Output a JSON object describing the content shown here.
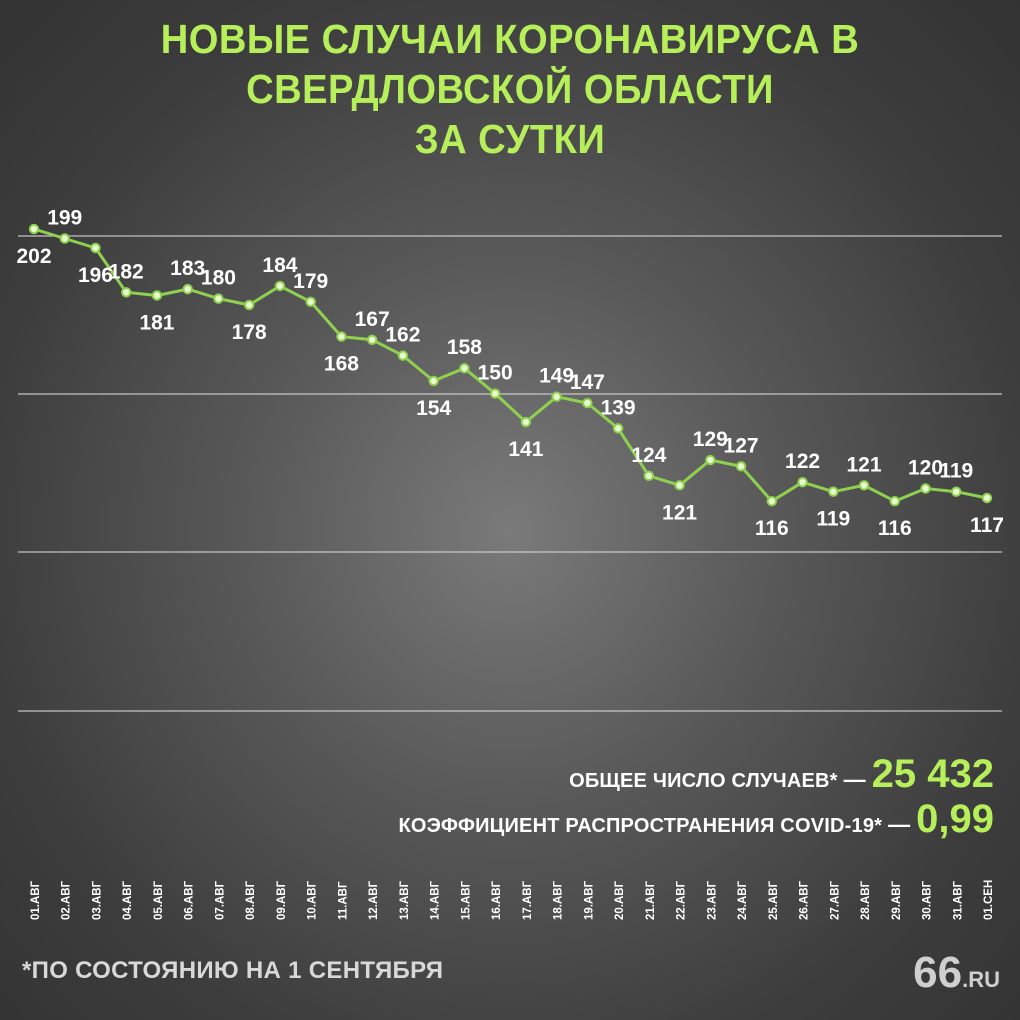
{
  "title": {
    "line1": "НОВЫЕ СЛУЧАИ КОРОНАВИРУСА В СВЕРДЛОВСКОЙ ОБЛАСТИ",
    "line2": "ЗА СУТКИ"
  },
  "stats": {
    "total_label": "ОБЩЕЕ ЧИСЛО СЛУЧАЕВ*",
    "total_value": "25 432",
    "r_label": "КОЭФФИЦИЕНТ РАСПРОСТРАНЕНИЯ COVID-19*",
    "r_value": "0,99",
    "dash": "—"
  },
  "footnote": "*ПО СОСТОЯНИЮ НА 1 СЕНТЯБРЯ",
  "logo": {
    "number": "66",
    "domain": ".RU"
  },
  "colors": {
    "accent": "#b6ef5a",
    "line": "#8fd14f",
    "grid": "#d9d9d9"
  },
  "chart_data": {
    "type": "line",
    "title": "НОВЫЕ СЛУЧАИ КОРОНАВИРУСА В СВЕРДЛОВСКОЙ ОБЛАСТИ ЗА СУТКИ",
    "categories": [
      "01.АВГ",
      "02.АВГ",
      "03.АВГ",
      "04.АВГ",
      "05.АВГ",
      "06.АВГ",
      "07.АВГ",
      "08.АВГ",
      "09.АВГ",
      "10.АВГ",
      "11.АВГ",
      "12.АВГ",
      "13.АВГ",
      "14.АВГ",
      "15.АВГ",
      "16.АВГ",
      "17.АВГ",
      "18.АВГ",
      "19.АВГ",
      "20.АВГ",
      "21.АВГ",
      "22.АВГ",
      "23.АВГ",
      "24.АВГ",
      "25.АВГ",
      "26.АВГ",
      "27.АВГ",
      "28.АВГ",
      "29.АВГ",
      "30.АВГ",
      "31.АВГ",
      "01.СЕН"
    ],
    "values": [
      202,
      199,
      196,
      182,
      181,
      183,
      180,
      178,
      184,
      179,
      168,
      167,
      162,
      154,
      158,
      150,
      141,
      149,
      147,
      139,
      124,
      121,
      129,
      127,
      116,
      122,
      119,
      121,
      116,
      120,
      119,
      117
    ],
    "label_position": [
      "below",
      "above",
      "below",
      "above",
      "below",
      "above",
      "above",
      "below",
      "above",
      "above",
      "below",
      "above",
      "above",
      "below",
      "above",
      "above",
      "below",
      "above",
      "above",
      "above",
      "above",
      "below",
      "above",
      "above",
      "below",
      "above",
      "below",
      "above",
      "below",
      "above",
      "above",
      "below"
    ],
    "grid": true,
    "xlabel": "",
    "ylabel": ""
  }
}
